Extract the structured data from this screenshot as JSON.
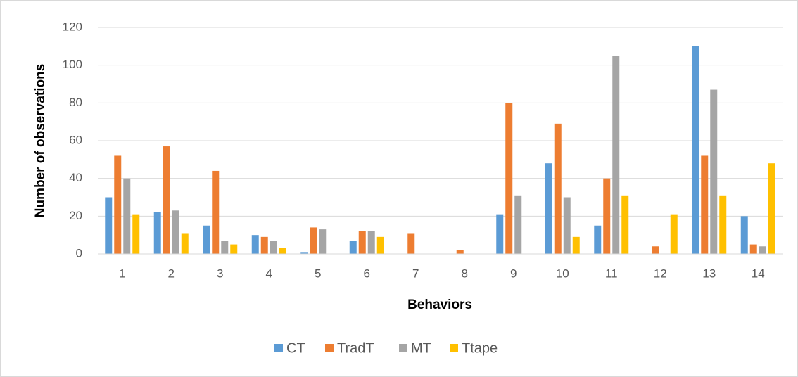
{
  "chart_data": {
    "type": "bar",
    "x_label": "Behaviors",
    "y_label": "Number of observations",
    "categories": [
      "1",
      "2",
      "3",
      "4",
      "5",
      "6",
      "7",
      "8",
      "9",
      "10",
      "11",
      "12",
      "13",
      "14"
    ],
    "series": [
      {
        "name": "CT",
        "color": "#5b9bd5",
        "values": [
          30,
          22,
          15,
          10,
          1,
          7,
          0,
          0,
          21,
          48,
          15,
          0,
          110,
          20
        ]
      },
      {
        "name": "TradT",
        "color": "#ed7d31",
        "values": [
          52,
          57,
          44,
          9,
          14,
          12,
          11,
          2,
          80,
          69,
          40,
          4,
          52,
          5
        ]
      },
      {
        "name": "MT",
        "color": "#a5a5a5",
        "values": [
          40,
          23,
          7,
          7,
          13,
          12,
          0,
          0,
          31,
          30,
          105,
          0,
          87,
          4
        ]
      },
      {
        "name": "Ttape",
        "color": "#ffc000",
        "values": [
          21,
          11,
          5,
          3,
          0,
          9,
          0,
          0,
          0,
          9,
          31,
          21,
          31,
          48
        ]
      }
    ],
    "ylim": [
      0,
      120
    ],
    "yticks": [
      0,
      20,
      40,
      60,
      80,
      100,
      120
    ],
    "grid": true,
    "legend": "bottom"
  }
}
